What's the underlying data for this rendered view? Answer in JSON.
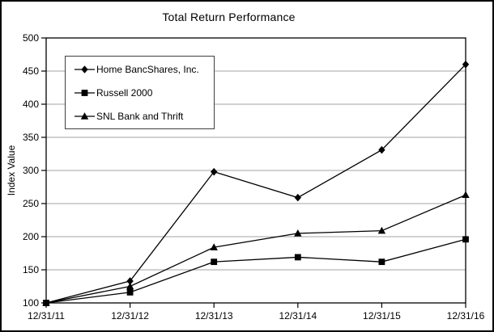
{
  "chart_data": {
    "type": "line",
    "title": "Total Return Performance",
    "xlabel": "",
    "ylabel": "Index Value",
    "categories": [
      "12/31/11",
      "12/31/12",
      "12/31/13",
      "12/31/14",
      "12/31/15",
      "12/31/16"
    ],
    "series": [
      {
        "name": "Home BancShares, Inc.",
        "marker": "diamond",
        "values": [
          100,
          133,
          298,
          259,
          331,
          460
        ]
      },
      {
        "name": "Russell 2000",
        "marker": "square",
        "values": [
          100,
          116,
          162,
          169,
          162,
          196
        ]
      },
      {
        "name": "SNL Bank and Thrift",
        "marker": "triangle",
        "values": [
          100,
          125,
          184,
          205,
          209,
          263
        ]
      }
    ],
    "ylim": [
      100,
      500
    ],
    "yticks": [
      100,
      150,
      200,
      250,
      300,
      350,
      400,
      450,
      500
    ],
    "grid": "horizontal-gridlines-on",
    "legend_position": "top-left-inside",
    "colors": {
      "line": "#000000",
      "marker": "#000000",
      "gridline": "#a3a3a3",
      "axis_frame": "#000000",
      "background": "#ffffff",
      "legend_border": "#3f3f3f"
    }
  }
}
